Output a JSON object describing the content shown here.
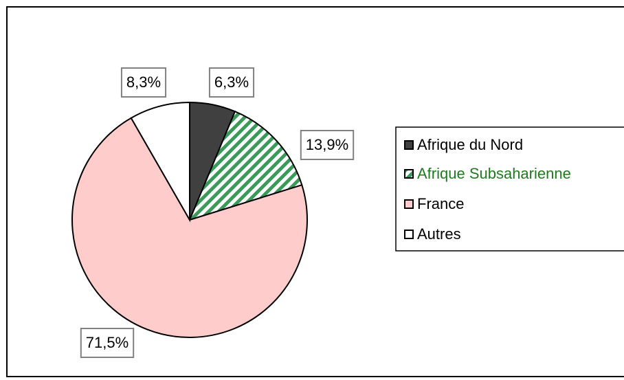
{
  "chart_data": {
    "type": "pie",
    "categories": [
      "Afrique du Nord",
      "Afrique Subsaharienne",
      "France",
      "Autres"
    ],
    "values": [
      6.3,
      13.9,
      71.5,
      8.3
    ],
    "value_labels": [
      "6,3%",
      "13,9%",
      "71,5%",
      "8,3%"
    ],
    "colors": [
      "#404040",
      "#3a9a5a",
      "#ffcccc",
      "#ffffff"
    ],
    "hatch": [
      false,
      true,
      false,
      false
    ],
    "legend_text_colors": [
      "#000000",
      "#1e7b1e",
      "#000000",
      "#000000"
    ],
    "legend": "right"
  }
}
